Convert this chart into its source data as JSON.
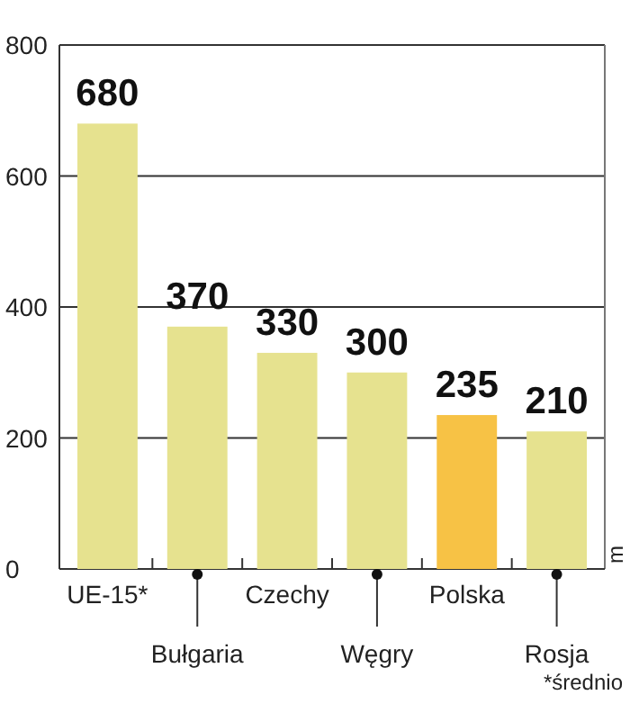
{
  "chart_data": {
    "type": "bar",
    "ylabel": "m",
    "categories": [
      "UE-15*",
      "Bułgaria",
      "Czechy",
      "Węgry",
      "Polska",
      "Rosja"
    ],
    "values": [
      680,
      370,
      330,
      300,
      235,
      210
    ],
    "colors": [
      "#e6e28f",
      "#e6e28f",
      "#e6e28f",
      "#e6e28f",
      "#f7c245",
      "#e6e28f"
    ],
    "ylim": [
      0,
      800
    ],
    "yticks": [
      0,
      200,
      400,
      600,
      800
    ],
    "grid": "y",
    "data_labels": true,
    "annotations": [
      "*średnio"
    ]
  }
}
